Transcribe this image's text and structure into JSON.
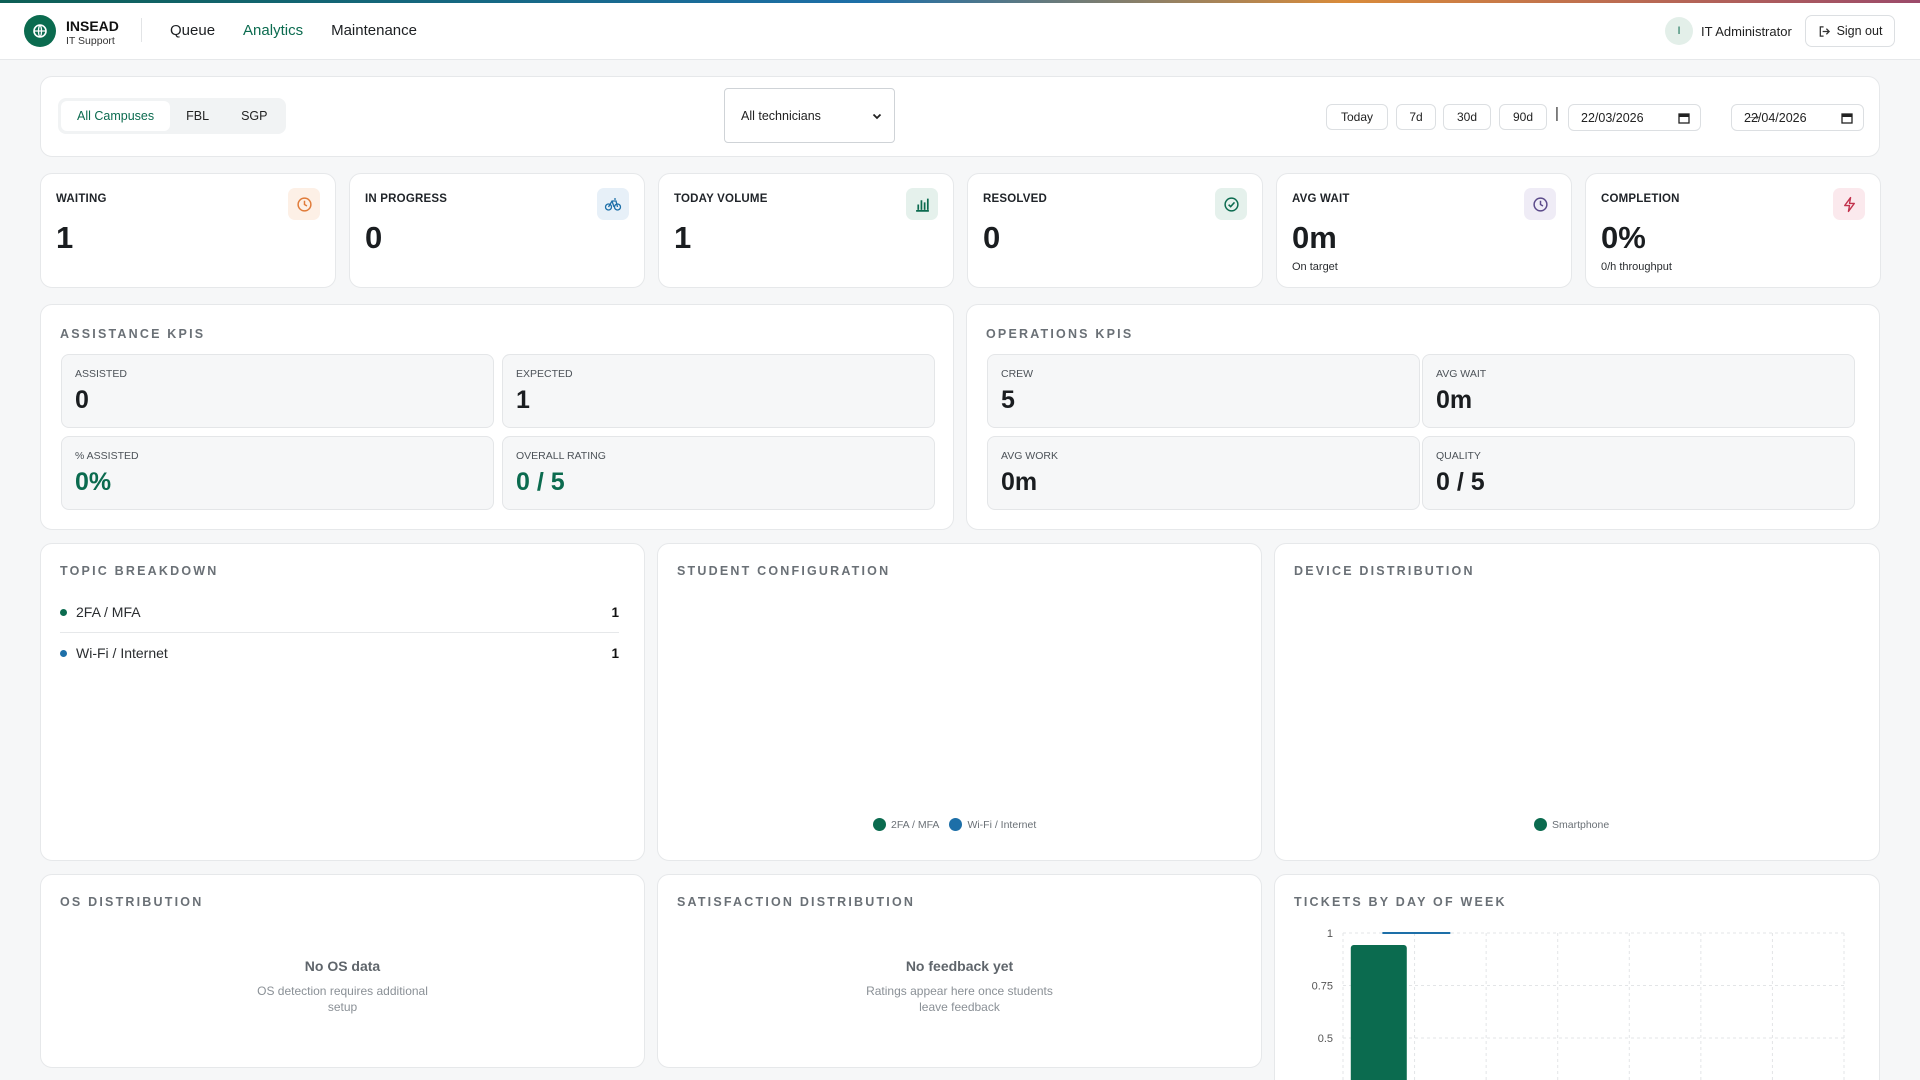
{
  "header": {
    "brand_name": "INSEAD",
    "brand_sub": "IT Support",
    "nav": [
      {
        "label": "Queue",
        "active": false
      },
      {
        "label": "Analytics",
        "active": true
      },
      {
        "label": "Maintenance",
        "active": false
      }
    ],
    "user_initial": "I",
    "user_name": "IT Administrator",
    "signout_label": "Sign out"
  },
  "filters": {
    "campuses": [
      {
        "label": "All Campuses",
        "active": true
      },
      {
        "label": "FBL",
        "active": false
      },
      {
        "label": "SGP",
        "active": false
      }
    ],
    "technician_select": "All technicians",
    "ranges": [
      "Today",
      "7d",
      "30d",
      "90d"
    ],
    "date_from": "22/03/2026",
    "date_to": "22/04/2026"
  },
  "stats": [
    {
      "label": "WAITING",
      "value": "1",
      "note": "",
      "icon": "clock-icon",
      "color": "#e07b39"
    },
    {
      "label": "IN PROGRESS",
      "value": "0",
      "note": "",
      "icon": "bicycle-icon",
      "color": "#1d6fa8"
    },
    {
      "label": "TODAY VOLUME",
      "value": "1",
      "note": "",
      "icon": "bar-chart-icon",
      "color": "#0b6b4f"
    },
    {
      "label": "RESOLVED",
      "value": "0",
      "note": "",
      "icon": "check-circle-icon",
      "color": "#0b6b4f"
    },
    {
      "label": "AVG WAIT",
      "value": "0m",
      "note": "On target",
      "icon": "clock-icon",
      "color": "#5b4a8a"
    },
    {
      "label": "COMPLETION",
      "value": "0%",
      "note": "0/h throughput",
      "icon": "lightning-icon",
      "color": "#c2334d"
    }
  ],
  "assistance": {
    "title": "ASSISTANCE KPIS",
    "items": [
      {
        "label": "ASSISTED",
        "value": "0"
      },
      {
        "label": "EXPECTED",
        "value": "1"
      },
      {
        "label": "% ASSISTED",
        "value": "0%"
      },
      {
        "label": "OVERALL RATING",
        "value": "0 / 5"
      }
    ]
  },
  "operations": {
    "title": "OPERATIONS KPIS",
    "items": [
      {
        "label": "CREW",
        "value": "5"
      },
      {
        "label": "AVG WAIT",
        "value": "0m"
      },
      {
        "label": "AVG WORK",
        "value": "0m"
      },
      {
        "label": "QUALITY",
        "value": "0 / 5"
      }
    ]
  },
  "topic": {
    "title": "TOPIC BREAKDOWN",
    "rows": [
      {
        "label": "2FA / MFA",
        "count": "1",
        "color": "#0b6b4f"
      },
      {
        "label": "Wi-Fi / Internet",
        "count": "1",
        "color": "#1d6fa8"
      }
    ]
  },
  "student_config": {
    "title": "STUDENT CONFIGURATION",
    "legend": [
      {
        "label": "2FA / MFA",
        "color": "#0b6b4f"
      },
      {
        "label": "Wi-Fi / Internet",
        "color": "#1d6fa8"
      }
    ]
  },
  "device": {
    "title": "DEVICE DISTRIBUTION",
    "legend": [
      {
        "label": "Smartphone",
        "color": "#0b6b4f"
      }
    ]
  },
  "os": {
    "title": "OS DISTRIBUTION",
    "empty_title": "No OS data",
    "empty_sub": "OS detection requires additional setup"
  },
  "satisfaction": {
    "title": "SATISFACTION DISTRIBUTION",
    "empty_title": "No feedback yet",
    "empty_sub": "Ratings appear here once students leave feedback"
  },
  "weekday": {
    "title": "TICKETS BY DAY OF WEEK"
  },
  "chart_data": {
    "type": "bar",
    "title": "TICKETS BY DAY OF WEEK",
    "y_ticks": [
      "1",
      "0.75",
      "0.5"
    ],
    "ylim": [
      0,
      1
    ],
    "values": [
      1,
      0,
      0,
      0,
      0,
      0,
      0
    ],
    "bar_color": "#0b6b4f",
    "line_color": "#1d6fa8"
  }
}
